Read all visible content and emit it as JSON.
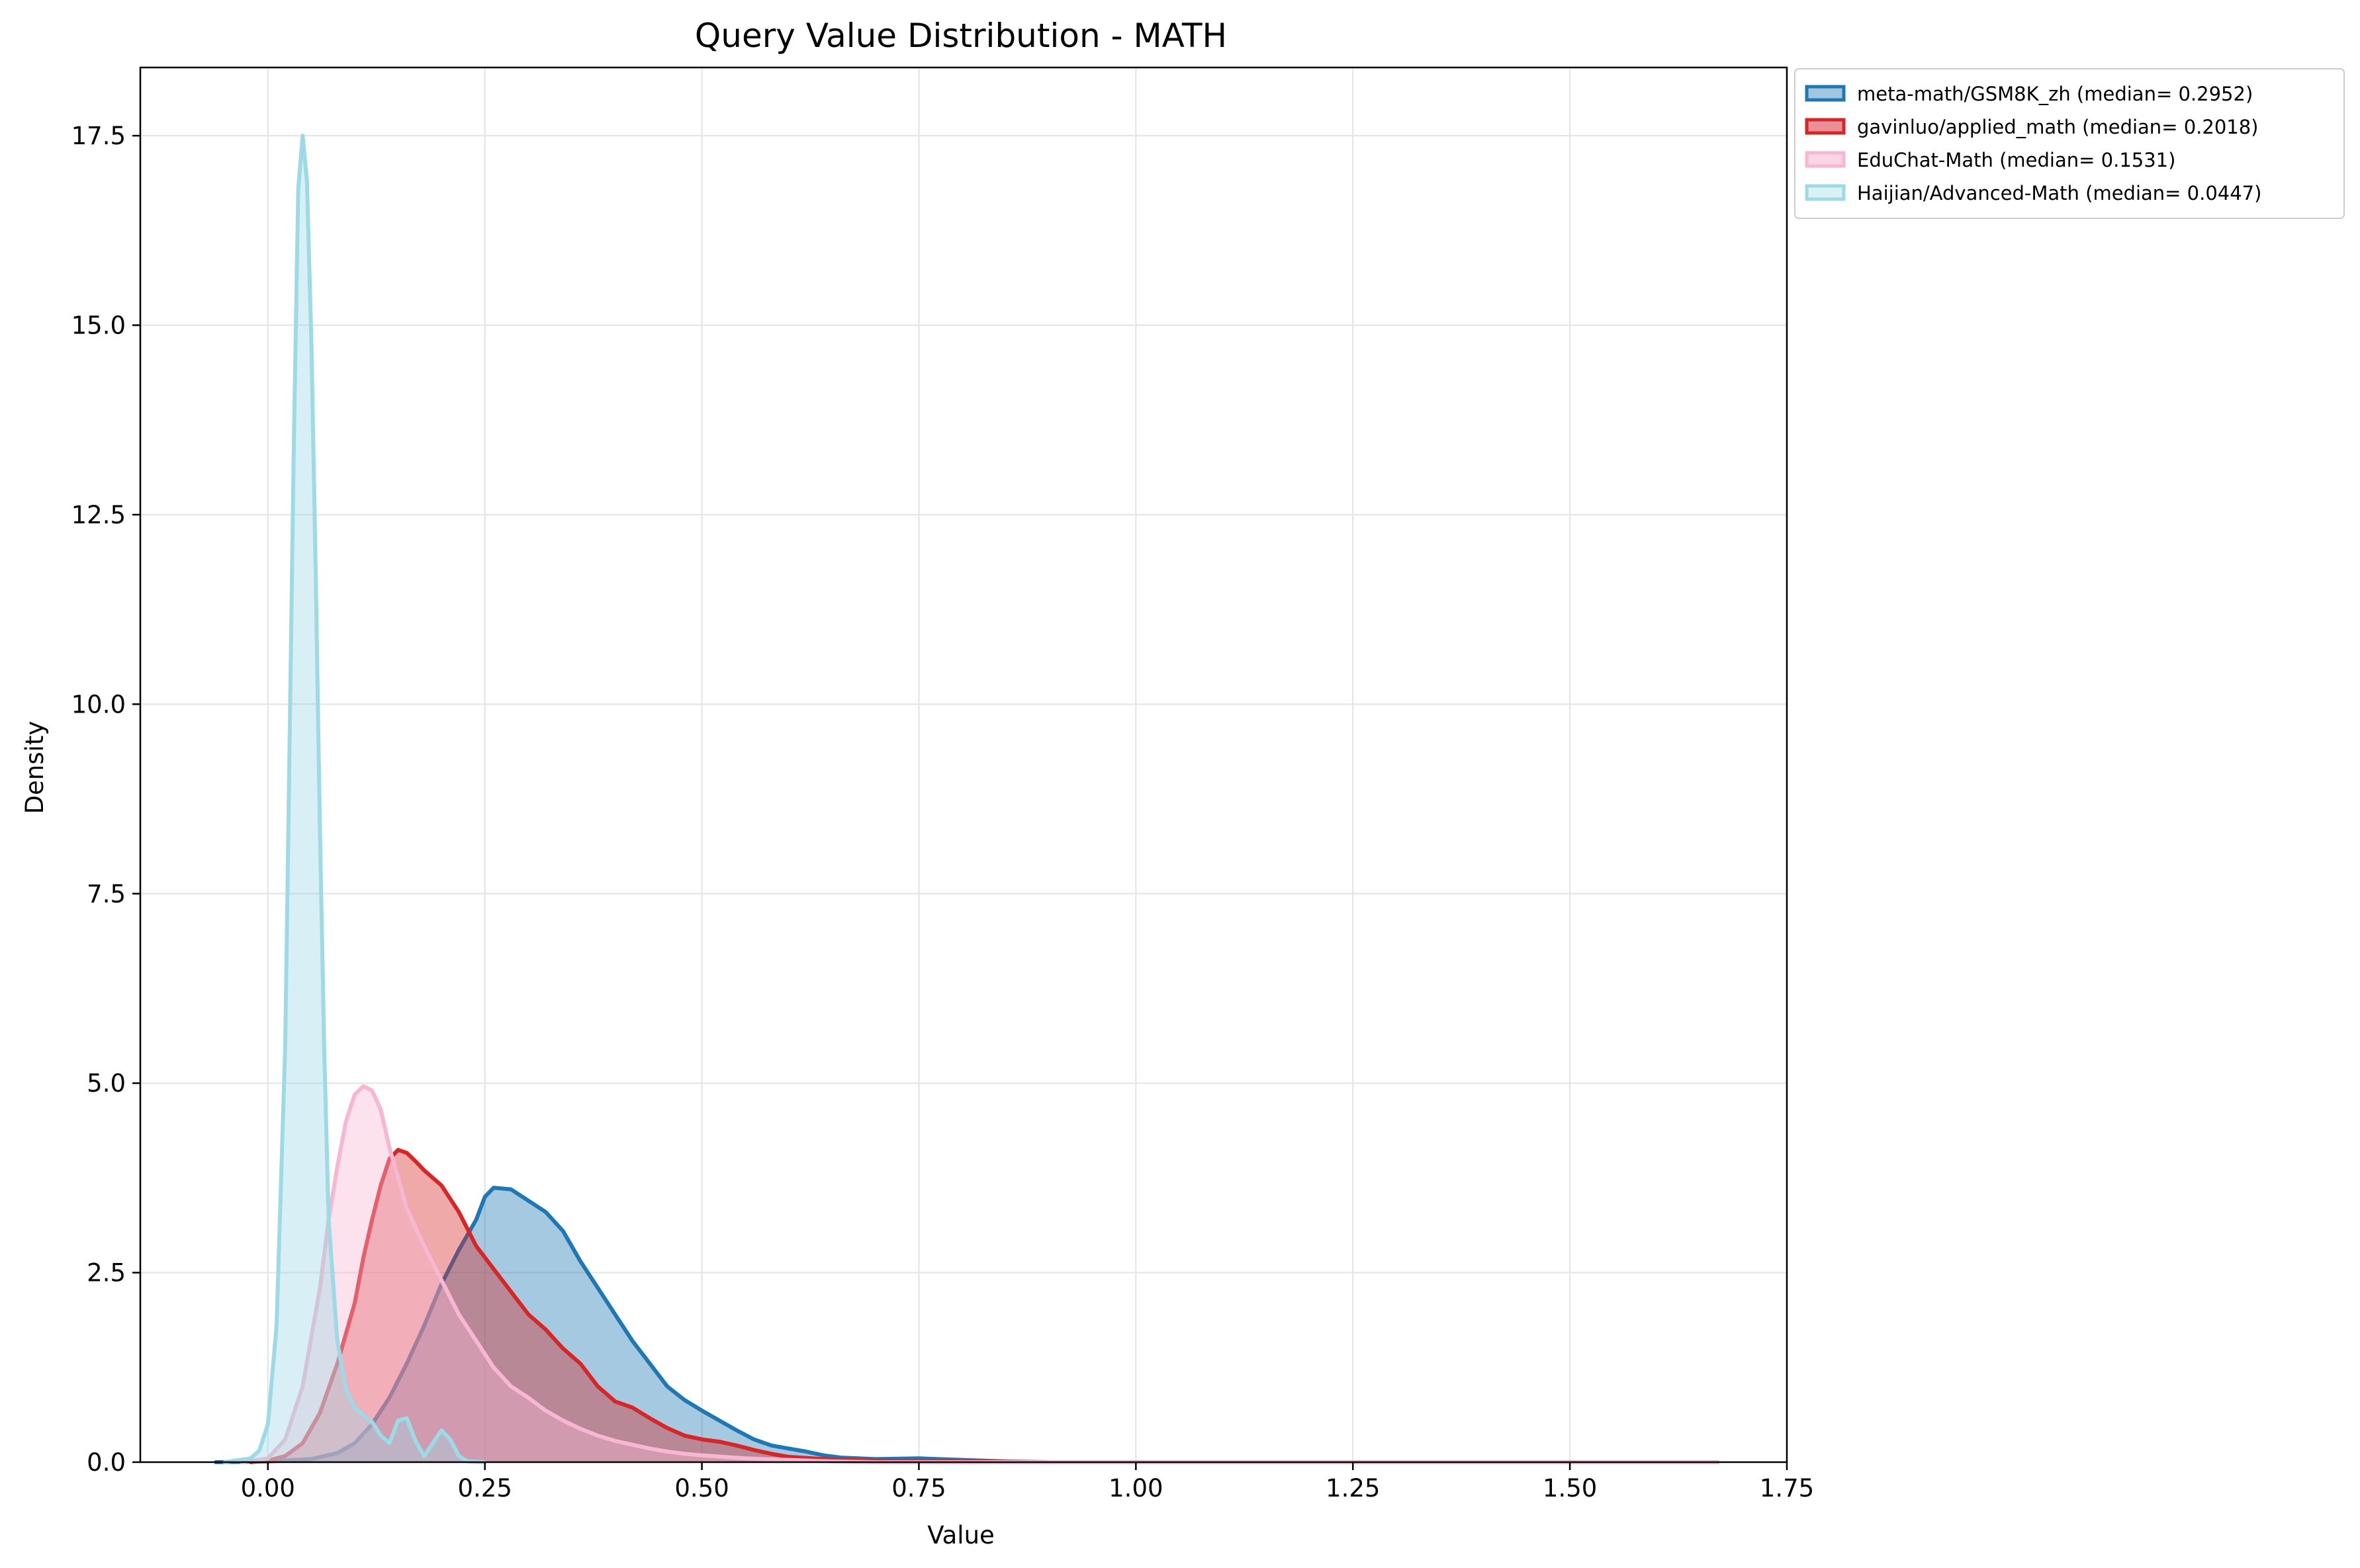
{
  "chart_data": {
    "type": "area",
    "title": "Query Value Distribution - MATH",
    "xlabel": "Value",
    "ylabel": "Density",
    "xlim": [
      -0.147,
      1.75
    ],
    "ylim": [
      0,
      18.4
    ],
    "x_ticks": [
      0.0,
      0.25,
      0.5,
      0.75,
      1.0,
      1.25,
      1.5,
      1.75
    ],
    "x_tick_labels": [
      "0.00",
      "0.25",
      "0.50",
      "0.75",
      "1.00",
      "1.25",
      "1.50",
      "1.75"
    ],
    "y_ticks": [
      0.0,
      2.5,
      5.0,
      7.5,
      10.0,
      12.5,
      15.0,
      17.5
    ],
    "y_tick_labels": [
      "0.0",
      "2.5",
      "5.0",
      "7.5",
      "10.0",
      "12.5",
      "15.0",
      "17.5"
    ],
    "grid": true,
    "legend_position": "outside-top-right",
    "series": [
      {
        "name": "meta-math/GSM8K_zh (median= 0.2952)",
        "color": "#1f77b4",
        "fill": "#a3c6e0",
        "points": [
          [
            -0.06,
            0
          ],
          [
            0.0,
            0.01
          ],
          [
            0.05,
            0.04
          ],
          [
            0.08,
            0.12
          ],
          [
            0.1,
            0.25
          ],
          [
            0.12,
            0.5
          ],
          [
            0.14,
            0.85
          ],
          [
            0.16,
            1.3
          ],
          [
            0.18,
            1.8
          ],
          [
            0.2,
            2.35
          ],
          [
            0.22,
            2.8
          ],
          [
            0.24,
            3.2
          ],
          [
            0.25,
            3.5
          ],
          [
            0.26,
            3.62
          ],
          [
            0.28,
            3.6
          ],
          [
            0.3,
            3.45
          ],
          [
            0.32,
            3.3
          ],
          [
            0.34,
            3.05
          ],
          [
            0.36,
            2.65
          ],
          [
            0.38,
            2.3
          ],
          [
            0.4,
            1.95
          ],
          [
            0.42,
            1.6
          ],
          [
            0.44,
            1.3
          ],
          [
            0.46,
            1.0
          ],
          [
            0.48,
            0.82
          ],
          [
            0.5,
            0.68
          ],
          [
            0.52,
            0.55
          ],
          [
            0.54,
            0.42
          ],
          [
            0.56,
            0.3
          ],
          [
            0.58,
            0.22
          ],
          [
            0.6,
            0.18
          ],
          [
            0.62,
            0.14
          ],
          [
            0.64,
            0.09
          ],
          [
            0.66,
            0.06
          ],
          [
            0.7,
            0.04
          ],
          [
            0.75,
            0.05
          ],
          [
            0.8,
            0.03
          ],
          [
            0.85,
            0.01
          ],
          [
            0.9,
            0.0
          ],
          [
            1.67,
            0.0
          ]
        ]
      },
      {
        "name": "gavinluo/applied_math (median= 0.2018)",
        "color": "#d62728",
        "fill": "#ea8f98",
        "points": [
          [
            -0.02,
            0
          ],
          [
            0.0,
            0.02
          ],
          [
            0.02,
            0.08
          ],
          [
            0.04,
            0.25
          ],
          [
            0.06,
            0.65
          ],
          [
            0.08,
            1.3
          ],
          [
            0.1,
            2.1
          ],
          [
            0.11,
            2.7
          ],
          [
            0.12,
            3.2
          ],
          [
            0.13,
            3.65
          ],
          [
            0.14,
            4.0
          ],
          [
            0.15,
            4.12
          ],
          [
            0.16,
            4.08
          ],
          [
            0.17,
            3.97
          ],
          [
            0.18,
            3.85
          ],
          [
            0.2,
            3.65
          ],
          [
            0.22,
            3.3
          ],
          [
            0.24,
            2.85
          ],
          [
            0.26,
            2.55
          ],
          [
            0.28,
            2.25
          ],
          [
            0.3,
            1.95
          ],
          [
            0.32,
            1.75
          ],
          [
            0.34,
            1.5
          ],
          [
            0.36,
            1.3
          ],
          [
            0.38,
            1.0
          ],
          [
            0.4,
            0.8
          ],
          [
            0.42,
            0.72
          ],
          [
            0.44,
            0.58
          ],
          [
            0.46,
            0.45
          ],
          [
            0.48,
            0.35
          ],
          [
            0.5,
            0.3
          ],
          [
            0.52,
            0.27
          ],
          [
            0.54,
            0.22
          ],
          [
            0.56,
            0.16
          ],
          [
            0.58,
            0.11
          ],
          [
            0.6,
            0.07
          ],
          [
            0.64,
            0.04
          ],
          [
            0.7,
            0.02
          ],
          [
            0.8,
            0.01
          ],
          [
            0.9,
            0.0
          ],
          [
            1.67,
            0.0
          ]
        ]
      },
      {
        "name": "EduChat-Math (median= 0.1531)",
        "color": "#f7b6d2",
        "fill": "#fbd5e6",
        "points": [
          [
            -0.03,
            0
          ],
          [
            0.0,
            0.05
          ],
          [
            0.02,
            0.3
          ],
          [
            0.04,
            1.0
          ],
          [
            0.06,
            2.3
          ],
          [
            0.07,
            3.2
          ],
          [
            0.08,
            3.9
          ],
          [
            0.09,
            4.5
          ],
          [
            0.1,
            4.85
          ],
          [
            0.11,
            4.96
          ],
          [
            0.12,
            4.9
          ],
          [
            0.13,
            4.65
          ],
          [
            0.14,
            4.15
          ],
          [
            0.15,
            3.75
          ],
          [
            0.16,
            3.35
          ],
          [
            0.18,
            2.85
          ],
          [
            0.2,
            2.4
          ],
          [
            0.22,
            1.95
          ],
          [
            0.24,
            1.6
          ],
          [
            0.26,
            1.25
          ],
          [
            0.28,
            1.0
          ],
          [
            0.3,
            0.85
          ],
          [
            0.32,
            0.68
          ],
          [
            0.34,
            0.55
          ],
          [
            0.36,
            0.44
          ],
          [
            0.38,
            0.35
          ],
          [
            0.4,
            0.28
          ],
          [
            0.42,
            0.23
          ],
          [
            0.44,
            0.18
          ],
          [
            0.46,
            0.14
          ],
          [
            0.48,
            0.11
          ],
          [
            0.5,
            0.09
          ],
          [
            0.55,
            0.05
          ],
          [
            0.6,
            0.03
          ],
          [
            0.65,
            0.01
          ],
          [
            0.7,
            0.0
          ],
          [
            1.67,
            0.0
          ]
        ]
      },
      {
        "name": "Haijian/Advanced-Math (median= 0.0447)",
        "color": "#9edae5",
        "fill": "#d9f0f4",
        "points": [
          [
            -0.05,
            0
          ],
          [
            -0.02,
            0.05
          ],
          [
            -0.01,
            0.15
          ],
          [
            0.0,
            0.5
          ],
          [
            0.01,
            1.8
          ],
          [
            0.02,
            5.5
          ],
          [
            0.025,
            9.5
          ],
          [
            0.03,
            13.5
          ],
          [
            0.035,
            16.8
          ],
          [
            0.04,
            17.5
          ],
          [
            0.045,
            16.9
          ],
          [
            0.05,
            14.8
          ],
          [
            0.055,
            11.8
          ],
          [
            0.06,
            8.3
          ],
          [
            0.065,
            5.4
          ],
          [
            0.07,
            3.2
          ],
          [
            0.08,
            1.6
          ],
          [
            0.09,
            0.95
          ],
          [
            0.1,
            0.72
          ],
          [
            0.11,
            0.62
          ],
          [
            0.12,
            0.53
          ],
          [
            0.13,
            0.35
          ],
          [
            0.14,
            0.25
          ],
          [
            0.15,
            0.55
          ],
          [
            0.16,
            0.58
          ],
          [
            0.17,
            0.28
          ],
          [
            0.18,
            0.08
          ],
          [
            0.19,
            0.25
          ],
          [
            0.2,
            0.42
          ],
          [
            0.21,
            0.3
          ],
          [
            0.22,
            0.08
          ],
          [
            0.23,
            0.01
          ],
          [
            0.25,
            0.0
          ]
        ]
      }
    ]
  }
}
